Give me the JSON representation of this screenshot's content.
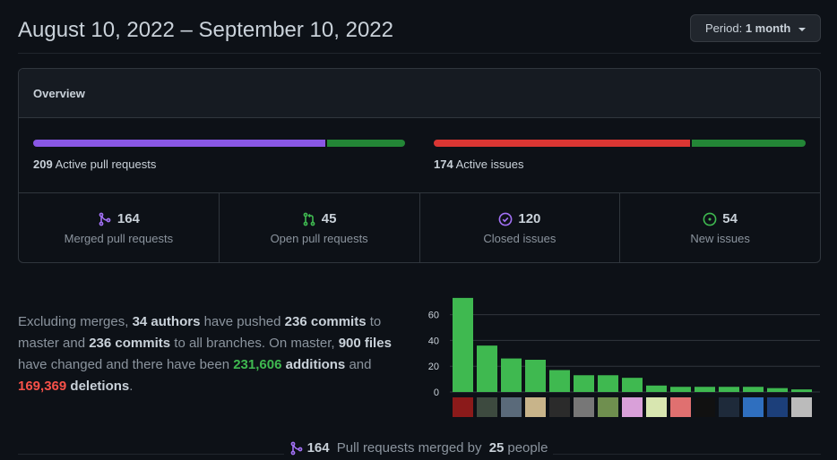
{
  "header": {
    "date_range": "August 10, 2022 – September 10, 2022",
    "period_label": "Period:",
    "period_value": "1 month"
  },
  "overview": {
    "title": "Overview",
    "pull_requests": {
      "count": "209",
      "label": "Active pull requests",
      "merged_fraction": 0.785,
      "colors": {
        "merged": "#8957e5",
        "open": "#238636"
      }
    },
    "issues": {
      "count": "174",
      "label": "Active issues",
      "closed_fraction": 0.69,
      "colors": {
        "closed": "#da3633",
        "new": "#238636"
      }
    },
    "stats": [
      {
        "icon": "git-merge-icon",
        "value": "164",
        "label": "Merged pull requests",
        "color": "#a371f7"
      },
      {
        "icon": "git-pull-request-icon",
        "value": "45",
        "label": "Open pull requests",
        "color": "#3fb950"
      },
      {
        "icon": "issue-closed-icon",
        "value": "120",
        "label": "Closed issues",
        "color": "#a371f7"
      },
      {
        "icon": "issue-opened-icon",
        "value": "54",
        "label": "New issues",
        "color": "#3fb950"
      }
    ]
  },
  "summary": {
    "t1": "Excluding merges, ",
    "authors": "34 authors",
    "t2": " have pushed ",
    "commits_master": "236 commits",
    "t3": " to master and ",
    "commits_all": "236 commits",
    "t4": " to all branches. On master, ",
    "files": "900 files",
    "t5": " have changed and there have been ",
    "additions_num": "231,606",
    "additions_word": "additions",
    "t6": " and ",
    "deletions_num": "169,369",
    "deletions_word": "deletions",
    "t7": "."
  },
  "chart_data": {
    "type": "bar",
    "ylim": [
      0,
      75
    ],
    "yticks": [
      "0",
      "20",
      "40",
      "60"
    ],
    "ytick_values": [
      0,
      20,
      40,
      60
    ],
    "values": [
      73,
      36,
      26,
      25,
      17,
      13,
      13,
      11,
      5,
      4,
      4,
      4,
      4,
      3,
      2
    ],
    "bar_color": "#3fb950",
    "grid": true
  },
  "footer": {
    "count": "164",
    "t1": " Pull requests merged by ",
    "people": "25",
    "t2": " people"
  }
}
